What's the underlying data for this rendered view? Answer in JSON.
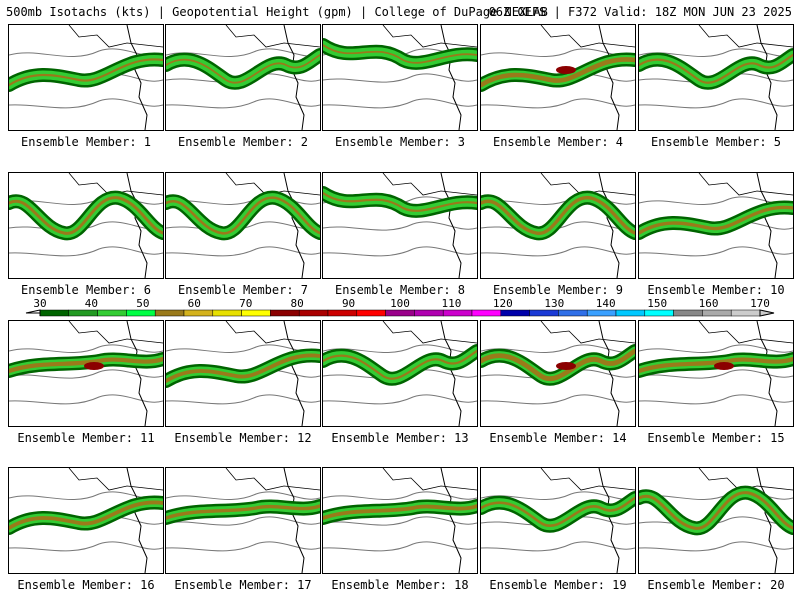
{
  "header": {
    "left_text": "500mb Isotachs (kts) | Geopotential Height (gpm) | College of DuPage NEXLAB",
    "right_text": "06Z GEFS | F372 Valid: 18Z MON JUN 23 2025"
  },
  "colorbar": {
    "ticks": [
      "30",
      "40",
      "50",
      "60",
      "70",
      "80",
      "90",
      "100",
      "110",
      "120",
      "130",
      "140",
      "150",
      "160",
      "170"
    ],
    "colors": [
      "#006400",
      "#229922",
      "#33cc33",
      "#00ff44",
      "#9a7a1a",
      "#d4b21c",
      "#e8e000",
      "#ffff00",
      "#8b0000",
      "#aa0000",
      "#cc0000",
      "#ff0000",
      "#9a008a",
      "#b000b0",
      "#cc00cc",
      "#ff00ff",
      "#0000aa",
      "#1a3ad6",
      "#2f6fe8",
      "#3aa0ff",
      "#00c8ff",
      "#00ffff",
      "#888888",
      "#aaaaaa",
      "#cccccc"
    ]
  },
  "panels": [
    {
      "label": "Ensemble Member: 1",
      "jet": "wave",
      "peak": 0.3
    },
    {
      "label": "Ensemble Member: 2",
      "jet": "ring",
      "peak": 0.2
    },
    {
      "label": "Ensemble Member: 3",
      "jet": "north",
      "peak": 0.2
    },
    {
      "label": "Ensemble Member: 4",
      "jet": "wave",
      "peak": 0.9
    },
    {
      "label": "Ensemble Member: 5",
      "jet": "ring",
      "peak": 0.3
    },
    {
      "label": "Ensemble Member: 6",
      "jet": "trough",
      "peak": 0.5
    },
    {
      "label": "Ensemble Member: 7",
      "jet": "trough",
      "peak": 0.4
    },
    {
      "label": "Ensemble Member: 8",
      "jet": "north",
      "peak": 0.3
    },
    {
      "label": "Ensemble Member: 9",
      "jet": "trough",
      "peak": 0.6
    },
    {
      "label": "Ensemble Member: 10",
      "jet": "wave",
      "peak": 0.6
    },
    {
      "label": "Ensemble Member: 11",
      "jet": "zonal",
      "peak": 0.8
    },
    {
      "label": "Ensemble Member: 12",
      "jet": "wave",
      "peak": 0.7
    },
    {
      "label": "Ensemble Member: 13",
      "jet": "ring",
      "peak": 0.3
    },
    {
      "label": "Ensemble Member: 14",
      "jet": "ring",
      "peak": 0.95
    },
    {
      "label": "Ensemble Member: 15",
      "jet": "zonal",
      "peak": 0.8
    },
    {
      "label": "Ensemble Member: 16",
      "jet": "wave",
      "peak": 0.7
    },
    {
      "label": "Ensemble Member: 17",
      "jet": "zonal",
      "peak": 0.6
    },
    {
      "label": "Ensemble Member: 18",
      "jet": "zonal",
      "peak": 0.7
    },
    {
      "label": "Ensemble Member: 19",
      "jet": "ring",
      "peak": 0.4
    },
    {
      "label": "Ensemble Member: 20",
      "jet": "trough",
      "peak": 0.5
    }
  ]
}
